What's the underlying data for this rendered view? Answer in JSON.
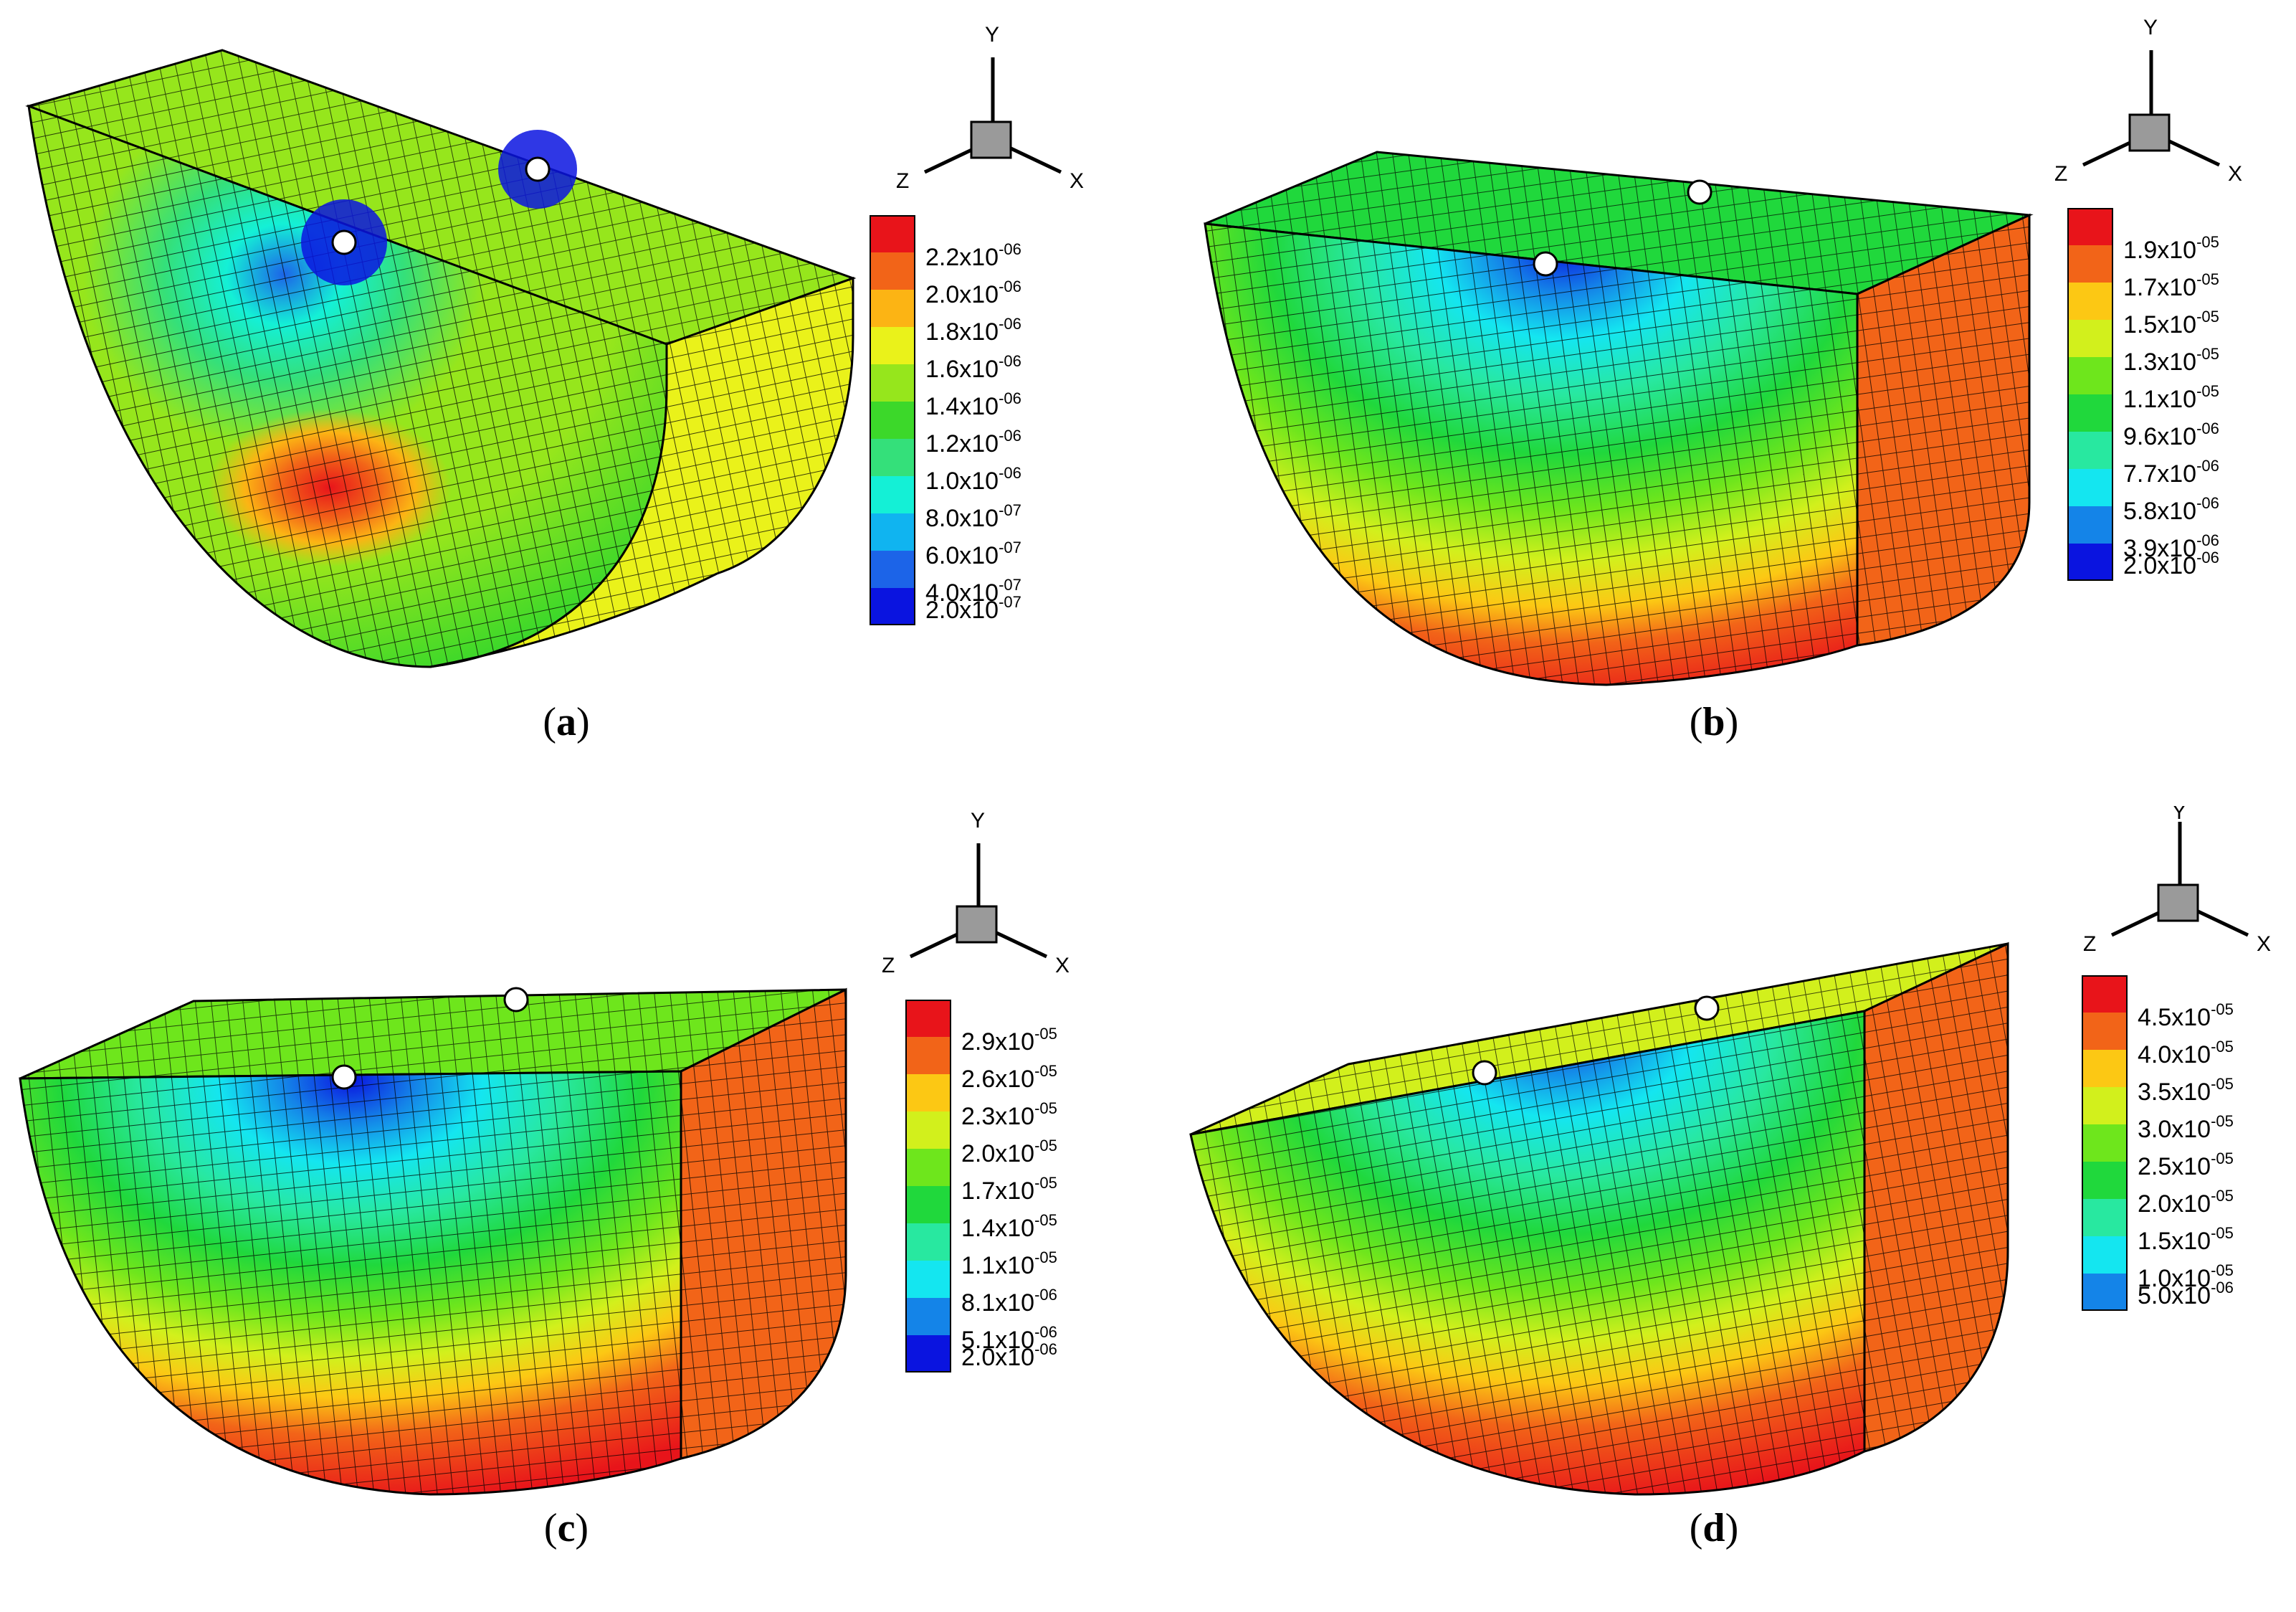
{
  "panels": [
    {
      "label": "a",
      "legend": [
        {
          "value": "2.2x10",
          "exp": "-06",
          "color": "#e8141a"
        },
        {
          "value": "2.0x10",
          "exp": "-06",
          "color": "#f26418"
        },
        {
          "value": "1.8x10",
          "exp": "-06",
          "color": "#fcb414"
        },
        {
          "value": "1.6x10",
          "exp": "-06",
          "color": "#eaf21a"
        },
        {
          "value": "1.4x10",
          "exp": "-06",
          "color": "#96e61c"
        },
        {
          "value": "1.2x10",
          "exp": "-06",
          "color": "#3cd82a"
        },
        {
          "value": "1.0x10",
          "exp": "-06",
          "color": "#34e07a"
        },
        {
          "value": "8.0x10",
          "exp": "-07",
          "color": "#14f0d6"
        },
        {
          "value": "6.0x10",
          "exp": "-07",
          "color": "#10b4f0"
        },
        {
          "value": "4.0x10",
          "exp": "-07",
          "color": "#1c64e8"
        },
        {
          "value": "2.0x10",
          "exp": "-07",
          "color": "#0a14e0"
        }
      ]
    },
    {
      "label": "b",
      "legend": [
        {
          "value": "1.9x10",
          "exp": "-05",
          "color": "#e8141a"
        },
        {
          "value": "1.7x10",
          "exp": "-05",
          "color": "#f26418"
        },
        {
          "value": "1.5x10",
          "exp": "-05",
          "color": "#fcc814"
        },
        {
          "value": "1.3x10",
          "exp": "-05",
          "color": "#d2f01c"
        },
        {
          "value": "1.1x10",
          "exp": "-05",
          "color": "#6ee61c"
        },
        {
          "value": "9.6x10",
          "exp": "-06",
          "color": "#20d83c"
        },
        {
          "value": "7.7x10",
          "exp": "-06",
          "color": "#28e8a0"
        },
        {
          "value": "5.8x10",
          "exp": "-06",
          "color": "#14e6f0"
        },
        {
          "value": "3.9x10",
          "exp": "-06",
          "color": "#1484e8"
        },
        {
          "value": "2.0x10",
          "exp": "-06",
          "color": "#0a14e0"
        }
      ]
    },
    {
      "label": "c",
      "legend": [
        {
          "value": "2.9x10",
          "exp": "-05",
          "color": "#e8141a"
        },
        {
          "value": "2.6x10",
          "exp": "-05",
          "color": "#f26418"
        },
        {
          "value": "2.3x10",
          "exp": "-05",
          "color": "#fcc814"
        },
        {
          "value": "2.0x10",
          "exp": "-05",
          "color": "#d2f01c"
        },
        {
          "value": "1.7x10",
          "exp": "-05",
          "color": "#6ee61c"
        },
        {
          "value": "1.4x10",
          "exp": "-05",
          "color": "#20d83c"
        },
        {
          "value": "1.1x10",
          "exp": "-05",
          "color": "#28e8a0"
        },
        {
          "value": "8.1x10",
          "exp": "-06",
          "color": "#14e6f0"
        },
        {
          "value": "5.1x10",
          "exp": "-06",
          "color": "#1484e8"
        },
        {
          "value": "2.0x10",
          "exp": "-06",
          "color": "#0a14e0"
        }
      ]
    },
    {
      "label": "d",
      "legend": [
        {
          "value": "4.5x10",
          "exp": "-05",
          "color": "#e8141a"
        },
        {
          "value": "4.0x10",
          "exp": "-05",
          "color": "#f26418"
        },
        {
          "value": "3.5x10",
          "exp": "-05",
          "color": "#fcc814"
        },
        {
          "value": "3.0x10",
          "exp": "-05",
          "color": "#d2f01c"
        },
        {
          "value": "2.5x10",
          "exp": "-05",
          "color": "#6ee61c"
        },
        {
          "value": "2.0x10",
          "exp": "-05",
          "color": "#20d83c"
        },
        {
          "value": "1.5x10",
          "exp": "-05",
          "color": "#28e8a0"
        },
        {
          "value": "1.0x10",
          "exp": "-05",
          "color": "#14e6f0"
        },
        {
          "value": "5.0x10",
          "exp": "-06",
          "color": "#1484e8"
        }
      ]
    }
  ],
  "axes": {
    "x": "X",
    "y": "Y",
    "z": "Z"
  }
}
